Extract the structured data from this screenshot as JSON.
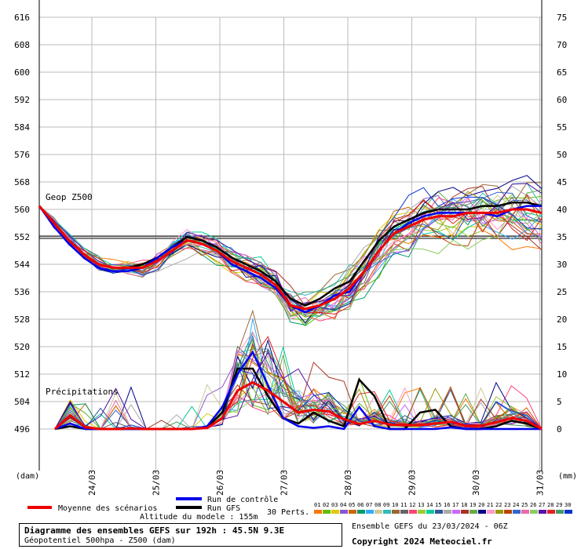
{
  "chart_data": {
    "type": "line",
    "title": "Diagramme des ensembles GEFS sur 192h : 45.5N 9.3E",
    "subtitle": "Géopotentiel 500hpa - Z500 (dam)",
    "y_left_unit": "(dam)",
    "y_right_unit": "(mm)",
    "y_left_ticks": [
      616,
      608,
      600,
      592,
      584,
      576,
      568,
      560,
      552,
      544,
      536,
      528,
      520,
      512,
      504,
      496
    ],
    "y_right_ticks": [
      75,
      70,
      65,
      60,
      55,
      50,
      45,
      40,
      35,
      30,
      25,
      20,
      15,
      10,
      5,
      0
    ],
    "x_tick_labels": [
      "24/03",
      "25/03",
      "26/03",
      "27/03",
      "28/03",
      "29/03",
      "30/03",
      "31/03"
    ],
    "geop_label": "Geop Z500",
    "precip_label": "Précipitations",
    "reference_level": 552,
    "geop_series": [
      {
        "name": "Moyenne des scénarios",
        "color": "#ee0000",
        "values": [
          561,
          556,
          551,
          547,
          544,
          543,
          543,
          543,
          545,
          548,
          551,
          550,
          548,
          545,
          543,
          541,
          538,
          532,
          531,
          532,
          534,
          537,
          542,
          548,
          553,
          555,
          557,
          558,
          558,
          559,
          559,
          559,
          560,
          560,
          559
        ]
      },
      {
        "name": "Run de contrôle",
        "color": "#0000ee",
        "values": [
          561,
          555,
          550,
          546,
          543,
          542,
          542,
          543,
          546,
          549,
          551,
          550,
          548,
          544,
          542,
          540,
          537,
          532,
          530,
          532,
          535,
          536,
          542,
          548,
          553,
          556,
          558,
          559,
          559,
          559,
          559,
          558,
          560,
          561,
          561
        ]
      },
      {
        "name": "Run GFS",
        "color": "#000000",
        "values": [
          561,
          556,
          551,
          547,
          544,
          543,
          543,
          544,
          546,
          549,
          552,
          551,
          549,
          546,
          544,
          542,
          539,
          534,
          532,
          534,
          537,
          539,
          545,
          551,
          555,
          557,
          559,
          560,
          560,
          560,
          561,
          561,
          562,
          562,
          561
        ]
      }
    ],
    "precip_series": [
      {
        "name": "Moyenne des scénarios",
        "color": "#ee0000",
        "values": [
          0,
          2.5,
          0.3,
          0,
          0,
          0.1,
          0,
          0,
          0,
          0,
          0.2,
          2,
          7,
          8.5,
          7,
          5,
          3,
          3.5,
          3.2,
          1.8,
          0.9,
          1.5,
          0.8,
          0.7,
          0.7,
          1,
          1.3,
          0.6,
          0.6,
          1.2,
          2,
          1.5,
          0
        ]
      },
      {
        "name": "Run de contrôle",
        "color": "#0000ee",
        "values": [
          0,
          1,
          0,
          0,
          0,
          0,
          0,
          0,
          0,
          0,
          0.5,
          4,
          10,
          14,
          8,
          2,
          0.5,
          0.2,
          0.5,
          0,
          4,
          0.5,
          0,
          0,
          0,
          0,
          0.3,
          0,
          0,
          0,
          0,
          0,
          0
        ]
      },
      {
        "name": "Run GFS",
        "color": "#000000",
        "values": [
          0,
          0.5,
          0,
          0,
          0,
          0,
          0,
          0,
          0,
          0,
          0.3,
          3,
          11,
          11,
          6,
          2,
          1,
          3,
          1.5,
          0.5,
          9,
          6,
          0,
          0,
          3,
          3.5,
          0.5,
          0,
          0,
          0.5,
          1.5,
          1,
          0
        ]
      }
    ],
    "perturbations_label": "30 Perts.",
    "perturbations": [
      {
        "name": "01",
        "color": "#ff7700"
      },
      {
        "name": "02",
        "color": "#66bb00"
      },
      {
        "name": "03",
        "color": "#ddcc00"
      },
      {
        "name": "04",
        "color": "#8855cc"
      },
      {
        "name": "05",
        "color": "#cc6600"
      },
      {
        "name": "06",
        "color": "#009966"
      },
      {
        "name": "07",
        "color": "#33aaff"
      },
      {
        "name": "08",
        "color": "#cccc99"
      },
      {
        "name": "09",
        "color": "#33bbbb"
      },
      {
        "name": "10",
        "color": "#996633"
      },
      {
        "name": "11",
        "color": "#666666"
      },
      {
        "name": "12",
        "color": "#ff4477"
      },
      {
        "name": "13",
        "color": "#99cc33"
      },
      {
        "name": "14",
        "color": "#00cc99"
      },
      {
        "name": "15",
        "color": "#335599"
      },
      {
        "name": "16",
        "color": "#aaaaaa"
      },
      {
        "name": "17",
        "color": "#cc66ff"
      },
      {
        "name": "18",
        "color": "#aa3322"
      },
      {
        "name": "19",
        "color": "#66aa44"
      },
      {
        "name": "20",
        "color": "#000088"
      },
      {
        "name": "21",
        "color": "#ff99cc"
      },
      {
        "name": "22",
        "color": "#999900"
      },
      {
        "name": "23",
        "color": "#bb4400"
      },
      {
        "name": "24",
        "color": "#3366cc"
      },
      {
        "name": "25",
        "color": "#ee66aa"
      },
      {
        "name": "26",
        "color": "#88cc66"
      },
      {
        "name": "27",
        "color": "#5511aa"
      },
      {
        "name": "28",
        "color": "#dd2222"
      },
      {
        "name": "29",
        "color": "#449966"
      },
      {
        "name": "30",
        "color": "#0033cc"
      }
    ],
    "grid": true
  },
  "legend": {
    "mean_label": "Moyenne des scénarios",
    "control_label": "Run de contrôle",
    "gfs_label": "Run GFS",
    "mean_color": "#ee0000",
    "control_color": "#0000ee",
    "gfs_color": "#000000"
  },
  "footer": {
    "altitude": "Altitude du modele : 155m",
    "title": "Diagramme des ensembles GEFS sur 192h : 45.5N 9.3E",
    "subtitle": "Géopotentiel 500hpa - Z500 (dam)",
    "ensemble": "Ensemble GEFS du 23/03/2024 - 06Z",
    "copyright": "Copyright 2024 Meteociel.fr"
  }
}
